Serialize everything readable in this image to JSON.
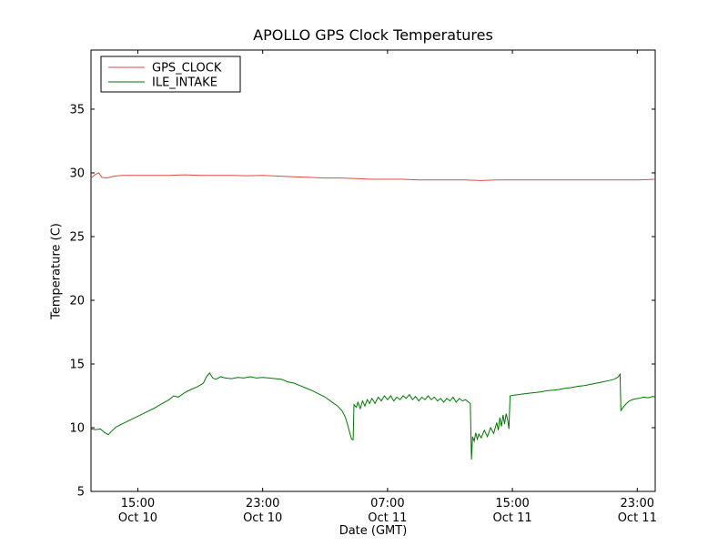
{
  "chart_data": {
    "type": "line",
    "title": "APOLLO GPS Clock Temperatures",
    "xlabel": "Date (GMT)",
    "ylabel": "Temperature (C)",
    "x_unit": "hours since Oct 10 00:00 GMT",
    "xlim": [
      12,
      48.15
    ],
    "ylim": [
      5,
      39.64
    ],
    "yticks": [
      5,
      10,
      15,
      20,
      25,
      30,
      35
    ],
    "xticks": [
      {
        "x": 15,
        "label": [
          "15:00",
          "Oct 10"
        ]
      },
      {
        "x": 23,
        "label": [
          "23:00",
          "Oct 10"
        ]
      },
      {
        "x": 31,
        "label": [
          "07:00",
          "Oct 11"
        ]
      },
      {
        "x": 39,
        "label": [
          "15:00",
          "Oct 11"
        ]
      },
      {
        "x": 47,
        "label": [
          "23:00",
          "Oct 11"
        ]
      }
    ],
    "grid": false,
    "legend_position": "upper left",
    "series": [
      {
        "name": "GPS_CLOCK",
        "color": "#e04b41",
        "points": [
          [
            12,
            29.6
          ],
          [
            12.3,
            29.9
          ],
          [
            12.5,
            30.0
          ],
          [
            12.7,
            29.65
          ],
          [
            13,
            29.6
          ],
          [
            13.5,
            29.75
          ],
          [
            14,
            29.8
          ],
          [
            15,
            29.8
          ],
          [
            16,
            29.8
          ],
          [
            17,
            29.8
          ],
          [
            18,
            29.85
          ],
          [
            19,
            29.8
          ],
          [
            20,
            29.8
          ],
          [
            21,
            29.8
          ],
          [
            22,
            29.78
          ],
          [
            23,
            29.8
          ],
          [
            24,
            29.75
          ],
          [
            25,
            29.7
          ],
          [
            26,
            29.65
          ],
          [
            27,
            29.6
          ],
          [
            28,
            29.6
          ],
          [
            29,
            29.55
          ],
          [
            30,
            29.5
          ],
          [
            31,
            29.5
          ],
          [
            32,
            29.5
          ],
          [
            33,
            29.45
          ],
          [
            34,
            29.45
          ],
          [
            35,
            29.45
          ],
          [
            36,
            29.45
          ],
          [
            37,
            29.4
          ],
          [
            38,
            29.45
          ],
          [
            39,
            29.45
          ],
          [
            40,
            29.45
          ],
          [
            41,
            29.45
          ],
          [
            42,
            29.45
          ],
          [
            43,
            29.45
          ],
          [
            44,
            29.45
          ],
          [
            45,
            29.45
          ],
          [
            46,
            29.45
          ],
          [
            47,
            29.45
          ],
          [
            48.15,
            29.5
          ]
        ]
      },
      {
        "name": "ILE_INTAKE",
        "color": "#007700",
        "points": [
          [
            12,
            9.9
          ],
          [
            12.3,
            9.85
          ],
          [
            12.6,
            9.9
          ],
          [
            12.9,
            9.6
          ],
          [
            13.1,
            9.45
          ],
          [
            13.3,
            9.7
          ],
          [
            13.6,
            10.05
          ],
          [
            14,
            10.3
          ],
          [
            14.5,
            10.6
          ],
          [
            15,
            10.9
          ],
          [
            15.5,
            11.2
          ],
          [
            16,
            11.5
          ],
          [
            16.5,
            11.85
          ],
          [
            17,
            12.2
          ],
          [
            17.3,
            12.5
          ],
          [
            17.6,
            12.4
          ],
          [
            18,
            12.75
          ],
          [
            18.4,
            13.0
          ],
          [
            18.8,
            13.2
          ],
          [
            19.2,
            13.5
          ],
          [
            19.4,
            14.0
          ],
          [
            19.6,
            14.3
          ],
          [
            19.8,
            13.9
          ],
          [
            20,
            13.8
          ],
          [
            20.3,
            14.0
          ],
          [
            20.6,
            13.9
          ],
          [
            21,
            13.85
          ],
          [
            21.4,
            13.95
          ],
          [
            21.8,
            13.9
          ],
          [
            22.2,
            14.0
          ],
          [
            22.6,
            13.9
          ],
          [
            23,
            13.95
          ],
          [
            23.4,
            13.9
          ],
          [
            23.8,
            13.85
          ],
          [
            24.2,
            13.8
          ],
          [
            24.6,
            13.6
          ],
          [
            25,
            13.5
          ],
          [
            25.4,
            13.3
          ],
          [
            25.8,
            13.1
          ],
          [
            26.2,
            12.9
          ],
          [
            26.6,
            12.65
          ],
          [
            27,
            12.4
          ],
          [
            27.4,
            12.05
          ],
          [
            27.8,
            11.7
          ],
          [
            28.1,
            11.3
          ],
          [
            28.3,
            10.8
          ],
          [
            28.45,
            10.2
          ],
          [
            28.6,
            9.5
          ],
          [
            28.7,
            9.1
          ],
          [
            28.8,
            9.05
          ],
          [
            28.85,
            11.8
          ],
          [
            29,
            11.6
          ],
          [
            29.1,
            12.0
          ],
          [
            29.25,
            11.5
          ],
          [
            29.4,
            12.1
          ],
          [
            29.55,
            11.7
          ],
          [
            29.7,
            12.2
          ],
          [
            29.85,
            11.9
          ],
          [
            30,
            12.3
          ],
          [
            30.2,
            11.9
          ],
          [
            30.4,
            12.4
          ],
          [
            30.6,
            12.1
          ],
          [
            30.8,
            12.5
          ],
          [
            31,
            12.2
          ],
          [
            31.2,
            12.5
          ],
          [
            31.4,
            12.1
          ],
          [
            31.6,
            12.4
          ],
          [
            31.8,
            12.2
          ],
          [
            32,
            12.5
          ],
          [
            32.2,
            12.3
          ],
          [
            32.4,
            12.6
          ],
          [
            32.6,
            12.2
          ],
          [
            32.8,
            12.45
          ],
          [
            33,
            12.1
          ],
          [
            33.2,
            12.4
          ],
          [
            33.4,
            12.2
          ],
          [
            33.6,
            12.5
          ],
          [
            33.8,
            12.2
          ],
          [
            34,
            12.4
          ],
          [
            34.2,
            12.1
          ],
          [
            34.4,
            12.3
          ],
          [
            34.6,
            12.0
          ],
          [
            34.8,
            12.3
          ],
          [
            35,
            12.1
          ],
          [
            35.2,
            12.4
          ],
          [
            35.4,
            12.0
          ],
          [
            35.6,
            12.3
          ],
          [
            35.8,
            12.1
          ],
          [
            36,
            12.2
          ],
          [
            36.2,
            12.0
          ],
          [
            36.3,
            11.9
          ],
          [
            36.38,
            7.5
          ],
          [
            36.45,
            9.3
          ],
          [
            36.55,
            8.95
          ],
          [
            36.65,
            9.6
          ],
          [
            36.75,
            9.1
          ],
          [
            36.85,
            9.5
          ],
          [
            37,
            9.2
          ],
          [
            37.2,
            9.8
          ],
          [
            37.4,
            9.3
          ],
          [
            37.6,
            10.0
          ],
          [
            37.8,
            9.55
          ],
          [
            38,
            10.4
          ],
          [
            38.1,
            9.8
          ],
          [
            38.2,
            10.8
          ],
          [
            38.3,
            10.1
          ],
          [
            38.4,
            11.0
          ],
          [
            38.5,
            10.3
          ],
          [
            38.6,
            11.1
          ],
          [
            38.7,
            10.6
          ],
          [
            38.78,
            9.9
          ],
          [
            38.85,
            12.5
          ],
          [
            39.1,
            12.55
          ],
          [
            39.4,
            12.6
          ],
          [
            39.7,
            12.65
          ],
          [
            40,
            12.7
          ],
          [
            40.4,
            12.75
          ],
          [
            40.8,
            12.8
          ],
          [
            41.2,
            12.9
          ],
          [
            41.6,
            12.95
          ],
          [
            42,
            13.0
          ],
          [
            42.4,
            13.1
          ],
          [
            42.8,
            13.15
          ],
          [
            43.2,
            13.25
          ],
          [
            43.6,
            13.3
          ],
          [
            44,
            13.4
          ],
          [
            44.4,
            13.5
          ],
          [
            44.8,
            13.6
          ],
          [
            45.2,
            13.7
          ],
          [
            45.5,
            13.8
          ],
          [
            45.75,
            13.95
          ],
          [
            45.9,
            14.2
          ],
          [
            45.95,
            11.35
          ],
          [
            46.1,
            11.6
          ],
          [
            46.3,
            11.9
          ],
          [
            46.5,
            12.1
          ],
          [
            46.8,
            12.25
          ],
          [
            47.1,
            12.3
          ],
          [
            47.4,
            12.4
          ],
          [
            47.7,
            12.35
          ],
          [
            48,
            12.45
          ],
          [
            48.15,
            12.4
          ]
        ]
      }
    ]
  }
}
